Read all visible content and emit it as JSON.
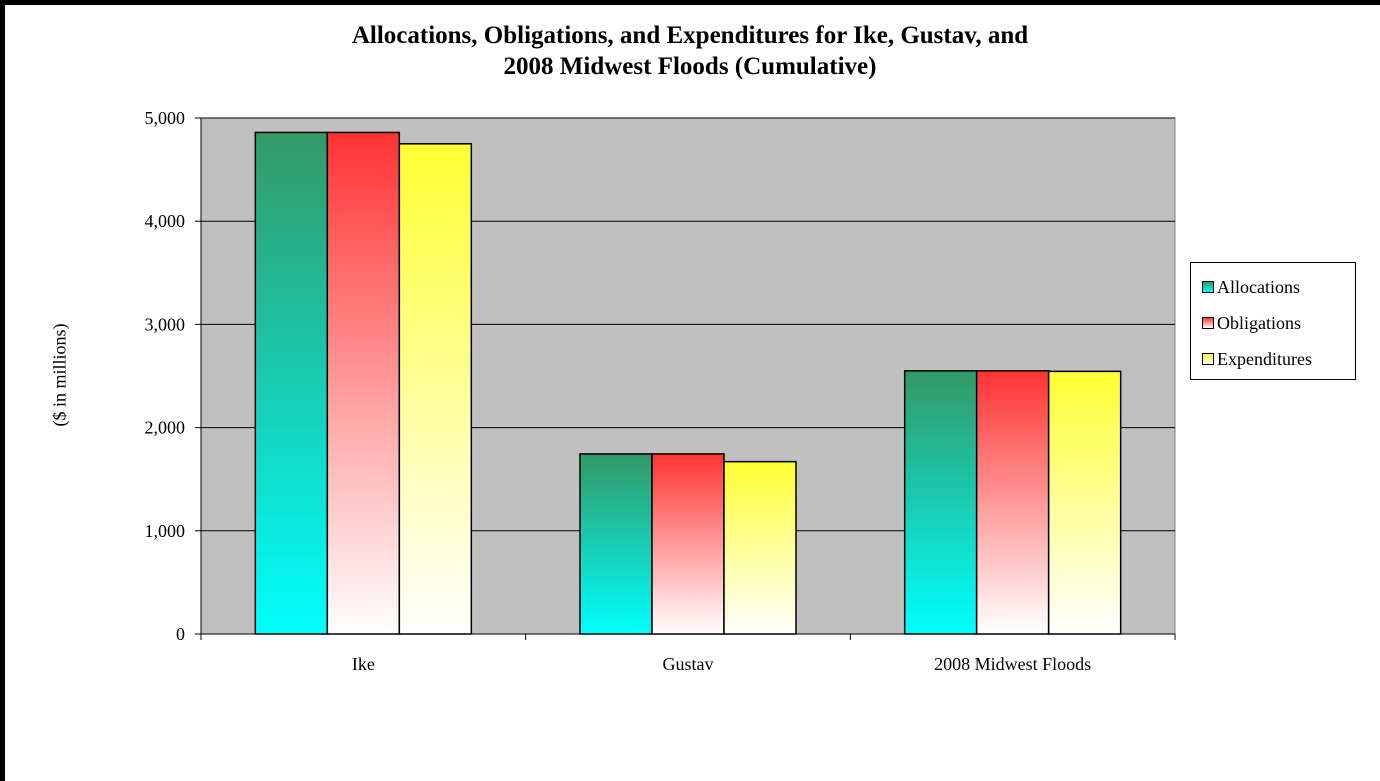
{
  "chart_data": {
    "type": "bar",
    "title_lines": [
      "Allocations, Obligations, and Expenditures for Ike, Gustav, and",
      "2008 Midwest Floods (Cumulative)"
    ],
    "ylabel": "($ in millions)",
    "xlabel": "",
    "categories": [
      "Ike",
      "Gustav",
      "2008 Midwest Floods"
    ],
    "series": [
      {
        "name": "Allocations",
        "values": [
          4860,
          1745,
          2550
        ],
        "color_top": "#339966",
        "color_bottom": "#00ffff"
      },
      {
        "name": "Obligations",
        "values": [
          4860,
          1745,
          2550
        ],
        "color_top": "#ff3333",
        "color_bottom": "#ffffff"
      },
      {
        "name": "Expenditures",
        "values": [
          4750,
          1670,
          2545
        ],
        "color_top": "#ffff33",
        "color_bottom": "#ffffff"
      }
    ],
    "ylim": [
      0,
      5000
    ],
    "yticks": [
      "0",
      "1,000",
      "2,000",
      "3,000",
      "4,000",
      "5,000"
    ],
    "ytick_values": [
      0,
      1000,
      2000,
      3000,
      4000,
      5000
    ],
    "grid": true,
    "plot_background": "#c0c0c0",
    "legend_position": "right"
  }
}
